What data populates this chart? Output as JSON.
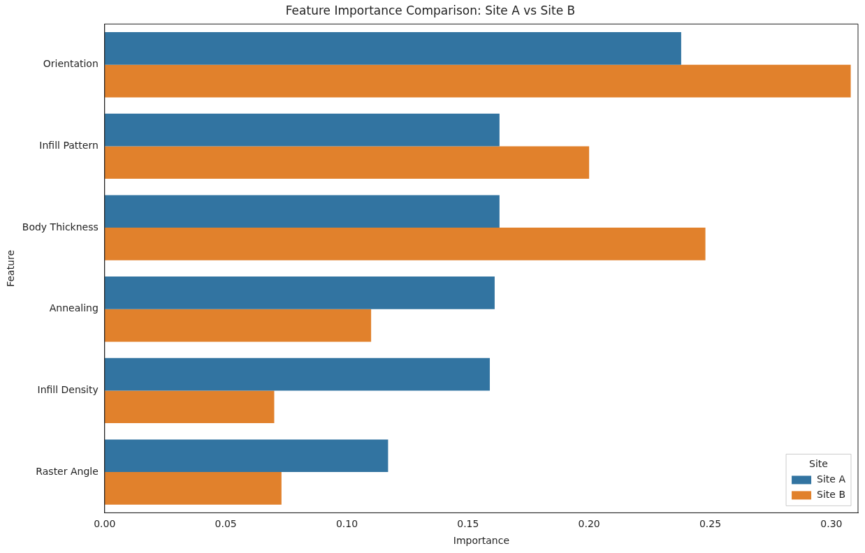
{
  "chart_data": {
    "type": "bar",
    "orientation": "horizontal",
    "title": "Feature Importance Comparison: Site A vs Site B",
    "xlabel": "Importance",
    "ylabel": "Feature",
    "legend_title": "Site",
    "legend": "bottom right",
    "grid": false,
    "categories": [
      "Orientation",
      "Infill Pattern",
      "Body Thickness",
      "Annealing",
      "Infill Density",
      "Raster Angle"
    ],
    "series": [
      {
        "name": "Site A",
        "color": "#3274a1",
        "values": [
          0.238,
          0.163,
          0.163,
          0.161,
          0.159,
          0.117
        ]
      },
      {
        "name": "Site B",
        "color": "#e1812c",
        "values": [
          0.308,
          0.2,
          0.248,
          0.11,
          0.07,
          0.073
        ]
      }
    ],
    "xlim": [
      0,
      0.311
    ],
    "xticks": [
      {
        "value": 0,
        "label": "0.00"
      },
      {
        "value": 0.05,
        "label": "0.05"
      },
      {
        "value": 0.1,
        "label": "0.10"
      },
      {
        "value": 0.15,
        "label": "0.15"
      },
      {
        "value": 0.2,
        "label": "0.20"
      },
      {
        "value": 0.25,
        "label": "0.25"
      },
      {
        "value": 0.3,
        "label": "0.30"
      }
    ]
  }
}
